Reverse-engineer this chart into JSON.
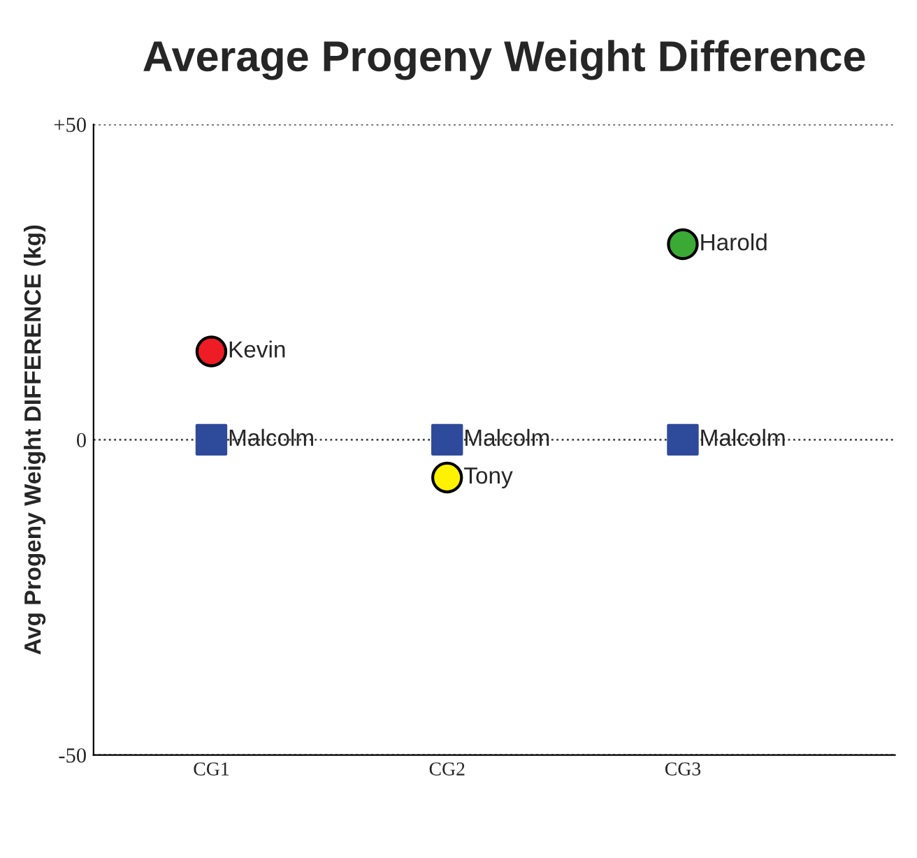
{
  "chart_data": {
    "type": "scatter",
    "title": "Average Progeny Weight Difference",
    "ylabel": "Avg Progeny Weight DIFFERENCE (kg)",
    "categories": [
      "CG1",
      "CG2",
      "CG3"
    ],
    "series": [
      {
        "name": "Malcolm",
        "color": "#2e4a9a",
        "marker": "square",
        "values": [
          0,
          0,
          0
        ]
      },
      {
        "name": "Kevin",
        "color": "#ee1c24",
        "marker": "circle",
        "values": [
          14,
          null,
          null
        ]
      },
      {
        "name": "Tony",
        "color": "#fff200",
        "marker": "circle",
        "values": [
          null,
          -6,
          null
        ]
      },
      {
        "name": "Harold",
        "color": "#3aaa35",
        "marker": "circle",
        "values": [
          null,
          null,
          31
        ]
      }
    ],
    "ylim": [
      -50,
      50
    ],
    "yticks": [
      {
        "value": 50,
        "label": "+50"
      },
      0,
      -50
    ],
    "grid": "y",
    "legend": false
  }
}
